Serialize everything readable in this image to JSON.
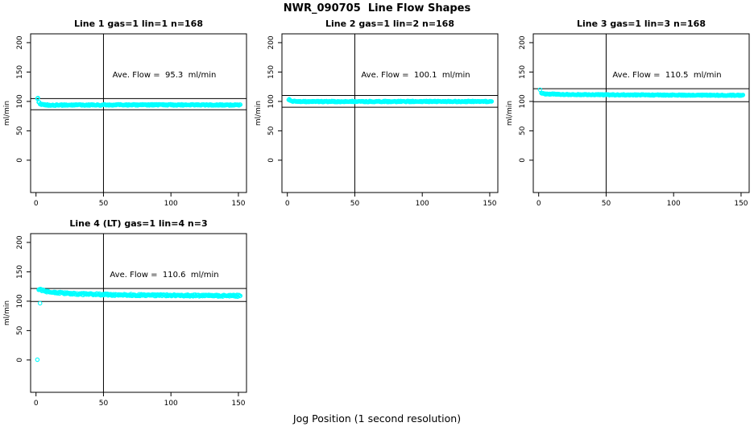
{
  "chart_data": {
    "type": "scatter",
    "title": "NWR_090705  Line Flow Shapes",
    "xlabel": "Jog Position (1 second resolution)",
    "ylabel": "ml/min",
    "x_ticks": [
      0,
      50,
      100,
      150
    ],
    "y_ticks": [
      0,
      50,
      100,
      150,
      200
    ],
    "xlim": [
      -4,
      156
    ],
    "ylim": [
      -55,
      215
    ],
    "vline_x": 50,
    "grid": false,
    "legend": "none",
    "marker": {
      "shape": "open-circle",
      "color": "#00ffff",
      "radius": 2.2
    },
    "axis_color": "#000000",
    "background_color": "#ffffff",
    "subplots": [
      {
        "name": "line-1",
        "title": "Line 1 gas=1 lin=1 n=168",
        "annotation": "Ave. Flow =  95.3  ml/min",
        "ave_flow_ml_min": 95.3,
        "n": 168,
        "hlines": [
          85.8,
          104.8
        ],
        "band": {
          "x_start": 1,
          "x_end": 151,
          "noise": 1.0,
          "keypoints": [
            [
              1,
              105
            ],
            [
              2,
              98.5
            ],
            [
              3,
              96
            ],
            [
              5,
              94.5
            ],
            [
              10,
              93.8
            ],
            [
              80,
              94.2
            ],
            [
              150,
              94
            ]
          ]
        },
        "outliers": []
      },
      {
        "name": "line-2",
        "title": "Line 2 gas=1 lin=2 n=168",
        "annotation": "Ave. Flow =  100.1  ml/min",
        "ave_flow_ml_min": 100.1,
        "n": 168,
        "hlines": [
          90.1,
          110.1
        ],
        "band": {
          "x_start": 1,
          "x_end": 151,
          "noise": 0.9,
          "keypoints": [
            [
              1,
              103.5
            ],
            [
              2,
              101.5
            ],
            [
              3,
              100.3
            ],
            [
              6,
              99.8
            ],
            [
              150,
              99.9
            ]
          ]
        },
        "outliers": []
      },
      {
        "name": "line-3",
        "title": "Line 3 gas=1 lin=3 n=168",
        "annotation": "Ave. Flow =  110.5  ml/min",
        "ave_flow_ml_min": 110.5,
        "n": 168,
        "hlines": [
          99.5,
          121.6
        ],
        "band": {
          "x_start": 2,
          "x_end": 151,
          "noise": 0.8,
          "keypoints": [
            [
              2,
              113.8
            ],
            [
              5,
              112.8
            ],
            [
              20,
              111.8
            ],
            [
              60,
              111.2
            ],
            [
              150,
              110.4
            ]
          ]
        },
        "outliers": [
          [
            1,
            120
          ]
        ]
      },
      {
        "name": "line-4",
        "title": "Line 4 (LT) gas=1 lin=4 n=3",
        "annotation": "Ave. Flow =  110.6  ml/min",
        "ave_flow_ml_min": 110.6,
        "n": 3,
        "hlines": [
          99.5,
          121.7
        ],
        "band": {
          "x_start": 2,
          "x_end": 151,
          "noise": 1.6,
          "keypoints": [
            [
              2,
              120
            ],
            [
              4,
              118.8
            ],
            [
              8,
              116.8
            ],
            [
              15,
              114.8
            ],
            [
              30,
              112.5
            ],
            [
              60,
              110.8
            ],
            [
              100,
              110
            ],
            [
              150,
              109.2
            ]
          ]
        },
        "outliers": [
          [
            1,
            0.5
          ],
          [
            3,
            96.5
          ]
        ]
      }
    ]
  }
}
